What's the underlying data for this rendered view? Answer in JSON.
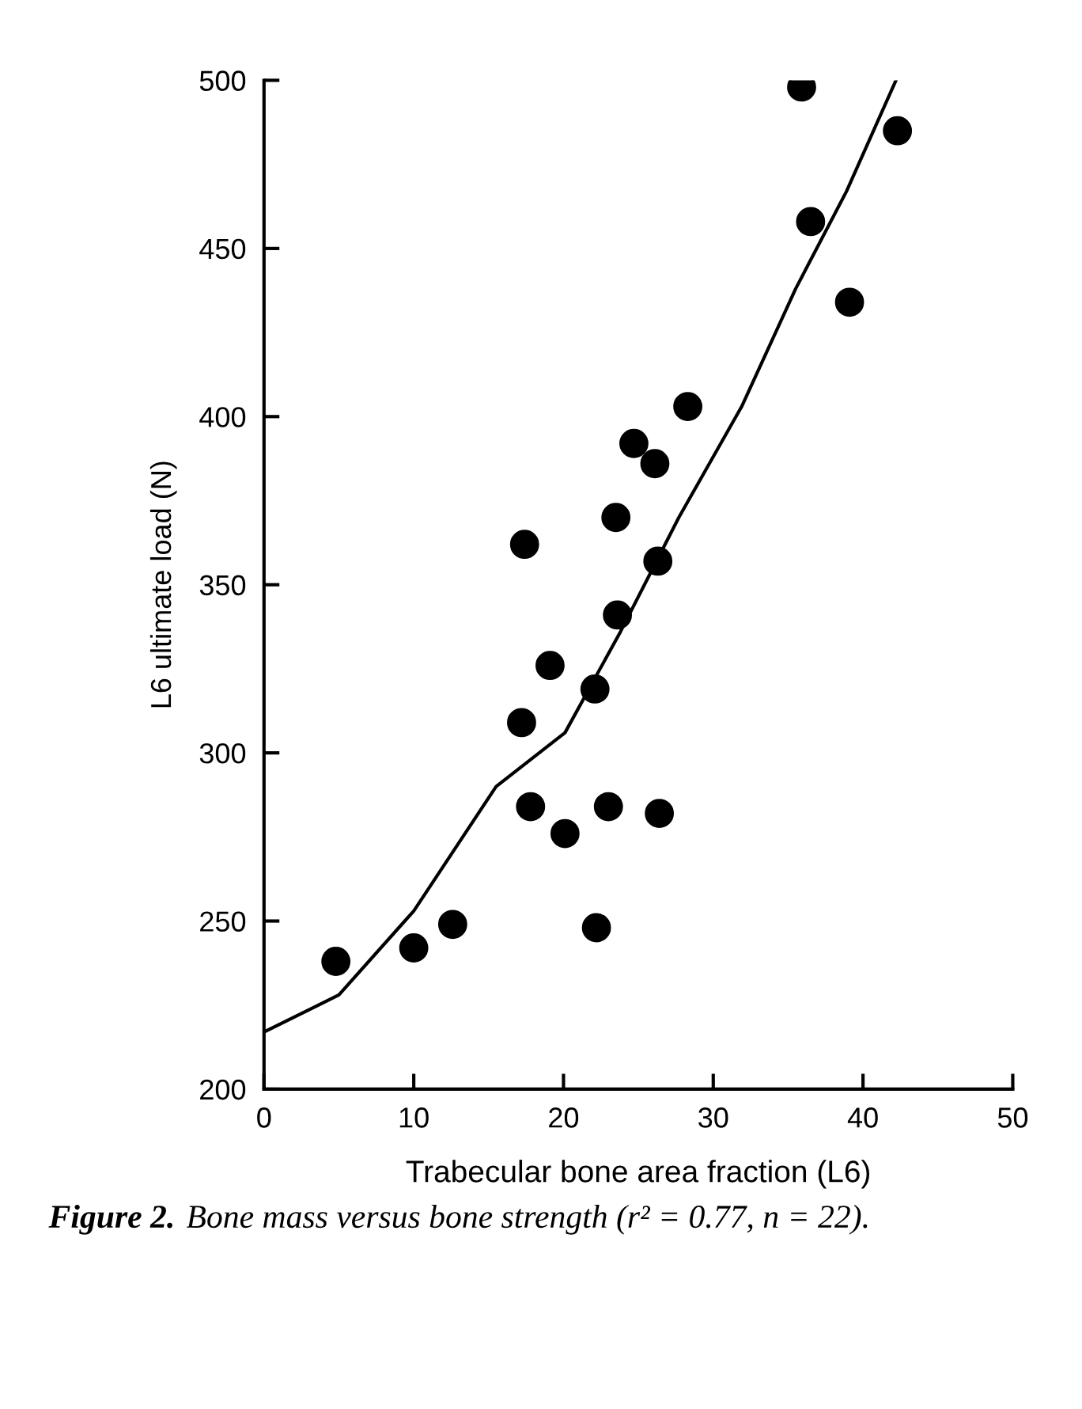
{
  "chart_data": {
    "type": "scatter",
    "xlabel": "Trabecular bone area fraction (L6)",
    "ylabel": "L6 ultimate load (N)",
    "xlim": [
      0,
      50
    ],
    "xticks": [
      0,
      10,
      20,
      30,
      40,
      50
    ],
    "ylim": [
      200,
      500
    ],
    "yticks": [
      200,
      250,
      300,
      350,
      400,
      450,
      500
    ],
    "grid": false,
    "series": [
      {
        "marker": "circle",
        "color": "#000000",
        "x": [
          4.8,
          10.0,
          12.6,
          17.4,
          23.5,
          24.7,
          26.1,
          28.3,
          35.9,
          42.3,
          36.5,
          39.1,
          26.3,
          23.6,
          19.1,
          22.1,
          17.2,
          17.8,
          20.1,
          23.0,
          26.4,
          22.2
        ],
        "values": [
          238,
          242,
          249,
          362,
          370,
          392,
          386,
          403,
          498,
          485,
          458,
          434,
          357,
          341,
          326,
          319,
          309,
          284,
          276,
          284,
          282,
          248
        ]
      },
      {
        "type": "line",
        "color": "#000000",
        "marker": "none",
        "line_style": "solid",
        "x": [
          0,
          5,
          10,
          15.5,
          20.1,
          23.8,
          27.7,
          31.9,
          35.5,
          38.9,
          42.2
        ],
        "values": [
          217,
          228,
          253,
          290,
          306,
          336,
          370,
          403,
          438,
          467,
          500
        ]
      }
    ],
    "annotations": [
      "Figure 2.",
      "Bone mass versus bone strength (r² = 0.77, n = 22)."
    ]
  }
}
